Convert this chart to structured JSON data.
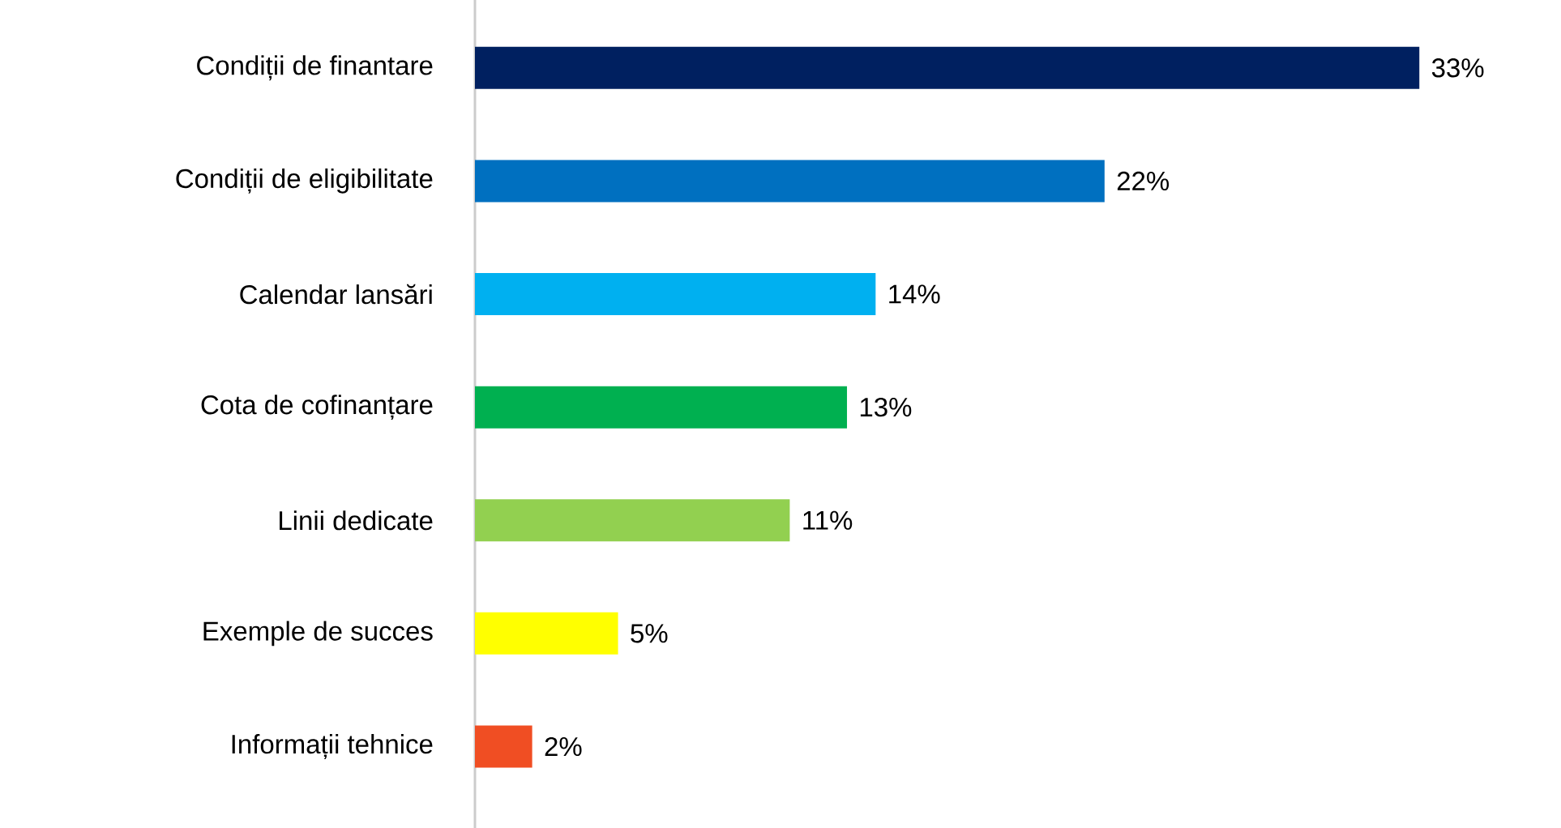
{
  "chart_data": {
    "type": "bar",
    "orientation": "horizontal",
    "categories": [
      "Condiții de finantare",
      "Condiții de eligibilitate",
      "Calendar lansări",
      "Cota de cofinanțare",
      "Linii dedicate",
      "Exemple de succes",
      "Informații tehnice"
    ],
    "values": [
      33,
      22,
      14,
      13,
      11,
      5,
      2
    ],
    "colors": [
      "#002060",
      "#0070c0",
      "#00b0f0",
      "#00b050",
      "#92d050",
      "#ffff00",
      "#f04e23"
    ],
    "value_labels": [
      "33%",
      "22%",
      "14%",
      "13%",
      "11%",
      "5%",
      "2%"
    ]
  }
}
